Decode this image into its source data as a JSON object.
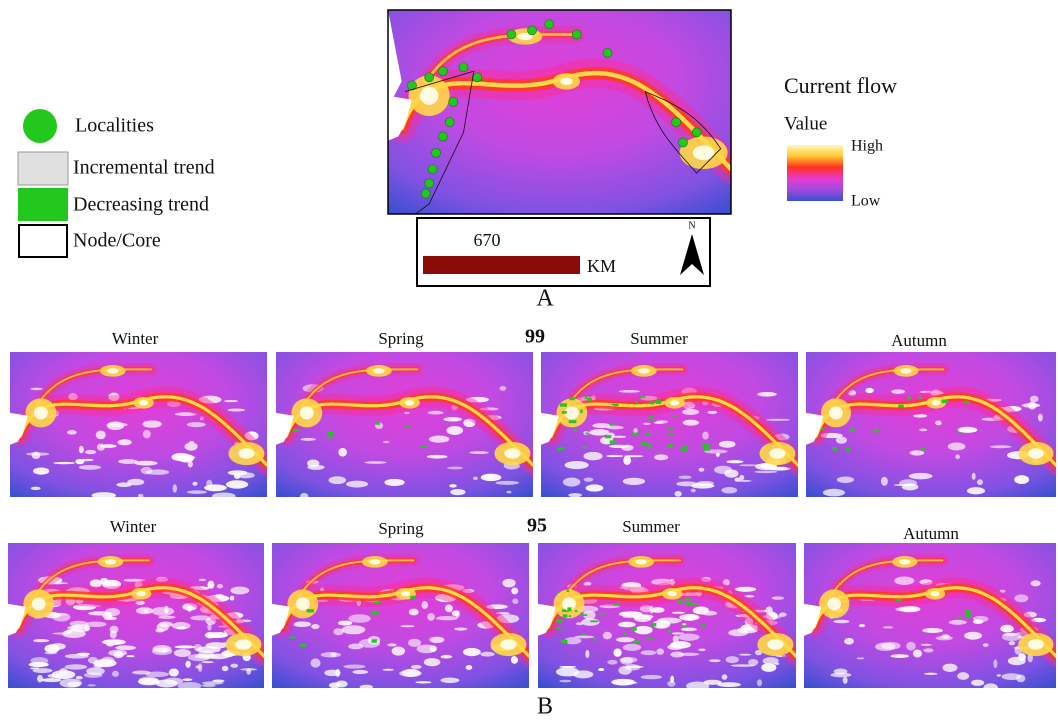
{
  "legend": {
    "items": [
      "Localities",
      "Incremental trend",
      "Decreasing trend",
      "Node/Core"
    ]
  },
  "colorbar": {
    "title": "Current flow",
    "subtitle": "Value",
    "high": "High",
    "low": "Low"
  },
  "scale_bar": {
    "distance": 670,
    "unit": "KM",
    "north": "N"
  },
  "panel_a": {
    "label": "A"
  },
  "panel_b": {
    "label": "B",
    "rows": [
      {
        "label": "99",
        "seasons": [
          "Winter",
          "Spring",
          "Summer",
          "Autumn"
        ]
      },
      {
        "label": "95",
        "seasons": [
          "Winter",
          "Spring",
          "Summer",
          "Autumn"
        ]
      }
    ]
  }
}
